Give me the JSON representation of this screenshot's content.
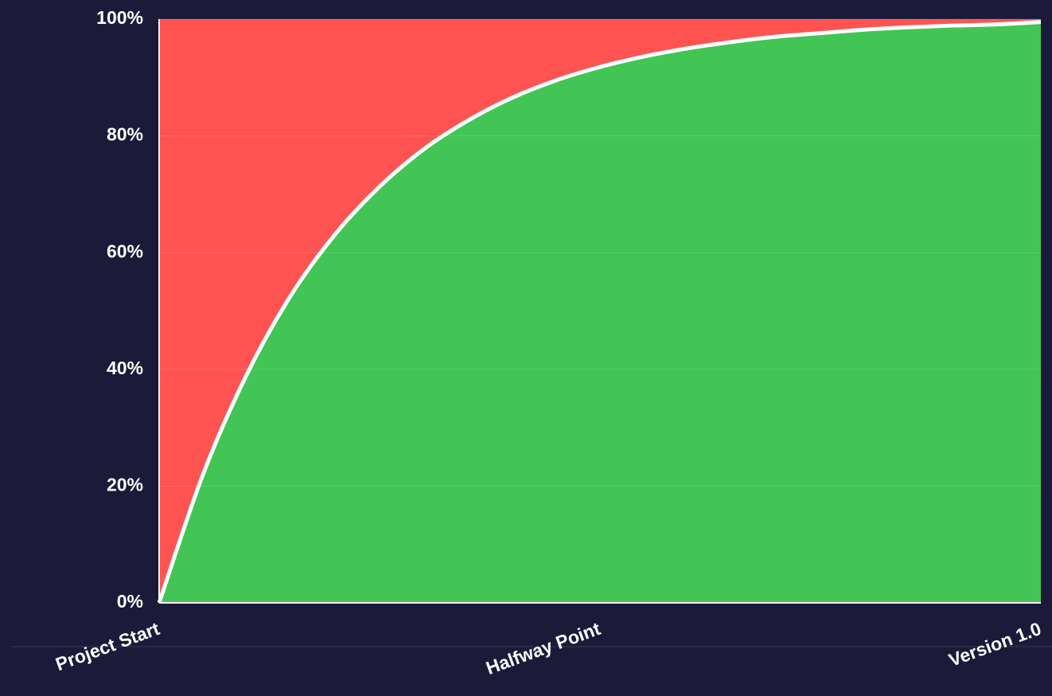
{
  "chart_data": {
    "type": "area",
    "categories": [
      "Project Start",
      null,
      null,
      null,
      null,
      null,
      null,
      null,
      null,
      null,
      "Halfway Point",
      null,
      null,
      null,
      null,
      null,
      null,
      null,
      null,
      null,
      "Version 1.0"
    ],
    "values": [
      0,
      22.1,
      39.3,
      52.8,
      63.2,
      71.3,
      77.7,
      82.6,
      86.5,
      89.5,
      91.8,
      93.6,
      95.0,
      96.1,
      97.0,
      97.6,
      98.2,
      98.6,
      98.9,
      99.1,
      99.5
    ],
    "color": "#42c555",
    "remainder_color": "#ff5352",
    "line_color": "#ffffff",
    "ylim": [
      0,
      100
    ],
    "yticks": [
      {
        "value": 0,
        "label": "0%"
      },
      {
        "value": 20,
        "label": "20%"
      },
      {
        "value": 40,
        "label": "40%"
      },
      {
        "value": 60,
        "label": "60%"
      },
      {
        "value": 80,
        "label": "80%"
      },
      {
        "value": 100,
        "label": "100%"
      }
    ],
    "grid": true
  }
}
